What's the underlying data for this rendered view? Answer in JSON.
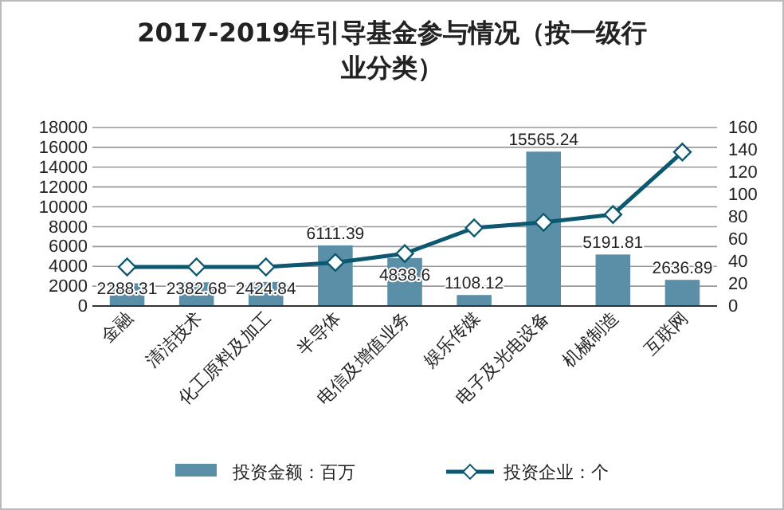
{
  "chart_data": {
    "type": "bar",
    "title": "2017-2019年引导基金参与情况（按一级行业分类）",
    "categories": [
      "金融",
      "清洁技术",
      "化工原料及加工",
      "半导体",
      "电信及增值业务",
      "娱乐传媒",
      "电子及光电设备",
      "机械制造",
      "互联网"
    ],
    "series": [
      {
        "name": "投资金额：百万",
        "color": "#5b8fa8",
        "values": [
          2288.31,
          2382.68,
          2424.84,
          6111.39,
          4838.6,
          1108.12,
          15565.24,
          5191.81,
          2636.89
        ],
        "data_labels": true
      },
      {
        "name": "投资企业：个",
        "type": "line",
        "axis": "y2",
        "color": "#0b5870",
        "values": [
          35,
          35,
          35,
          39,
          47,
          70,
          75,
          82,
          138
        ],
        "marker": "diamond"
      }
    ],
    "ylim": [
      0,
      18000
    ],
    "yticks": [
      0,
      2000,
      4000,
      6000,
      8000,
      10000,
      12000,
      14000,
      16000,
      18000
    ],
    "y2lim": [
      0,
      160
    ],
    "y2ticks": [
      0,
      20,
      40,
      60,
      80,
      100,
      120,
      140,
      160
    ],
    "grid": "y",
    "legend": "bottom"
  }
}
